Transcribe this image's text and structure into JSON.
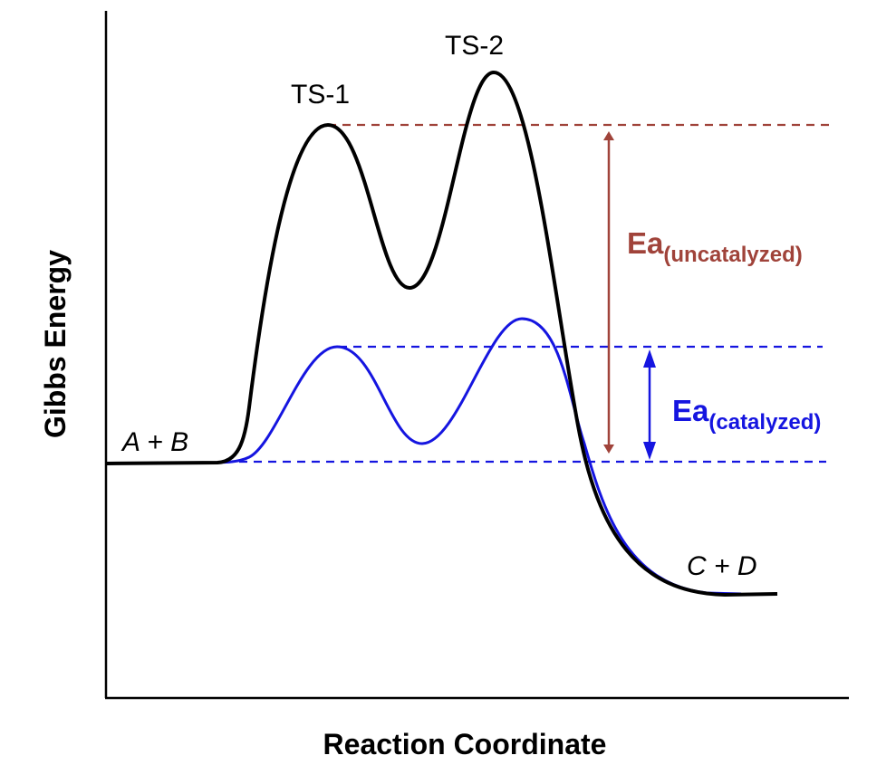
{
  "axes": {
    "x_label": "Reaction Coordinate",
    "y_label": "Gibbs Energy"
  },
  "labels": {
    "reactants": "A + B",
    "products": "C + D",
    "ts1": "TS-1",
    "ts2": "TS-2"
  },
  "ea_uncatalyzed": {
    "main": "Ea",
    "sub": "(uncatalyzed)",
    "color": "#a0433a"
  },
  "ea_catalyzed": {
    "main": "Ea",
    "sub": "(catalyzed)",
    "color": "#1515e0"
  },
  "curves": {
    "uncatalyzed_color": "#000000",
    "catalyzed_color": "#1515e0"
  }
}
